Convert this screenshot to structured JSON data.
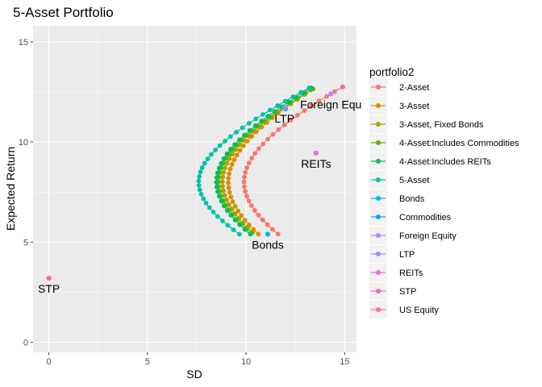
{
  "chart_data": {
    "type": "scatter",
    "title": "5-Asset Portfolio",
    "xlabel": "SD",
    "ylabel": "Expected Return",
    "xlim": [
      -0.8,
      15.6
    ],
    "ylim": [
      -0.5,
      15.8
    ],
    "x_ticks": [
      "0",
      "5",
      "10",
      "15"
    ],
    "y_ticks": [
      "0",
      "5",
      "10",
      "15"
    ],
    "grid": true,
    "legend_position": "right",
    "legend_title": "portfolio2",
    "frontiers": [
      {
        "name": "2-Asset",
        "color": "#F8766D",
        "tip": [
          11.1,
          5.4
        ],
        "top": [
          14.9,
          12.75
        ],
        "min_sd": 9.9,
        "n": 32
      },
      {
        "name": "3-Asset",
        "color": "#DB8E00",
        "tip": [
          11.0,
          5.4
        ],
        "top": [
          13.3,
          12.6
        ],
        "min_sd": 9.1,
        "n": 32
      },
      {
        "name": "3-Asset, Fixed Bonds",
        "color": "#AEA200",
        "tip": [
          10.9,
          5.5
        ],
        "top": [
          13.3,
          12.6
        ],
        "min_sd": 8.8,
        "n": 32
      },
      {
        "name": "4-Asset:Includes  Commodities",
        "color": "#64B200",
        "tip": [
          10.9,
          5.45
        ],
        "top": [
          13.4,
          12.65
        ],
        "min_sd": 8.6,
        "n": 32
      },
      {
        "name": "4-Asset:Includes  REITs",
        "color": "#00BD5C",
        "tip": [
          11.0,
          5.4
        ],
        "top": [
          13.3,
          12.7
        ],
        "min_sd": 8.5,
        "n": 32
      },
      {
        "name": "5-Asset",
        "color": "#00C1A7",
        "tip": [
          11.0,
          5.4
        ],
        "top": [
          13.2,
          12.7
        ],
        "min_sd": 7.6,
        "n": 34
      }
    ],
    "assets": [
      {
        "name": "Bonds",
        "color": "#00BADE",
        "sd": 11.1,
        "ret": 5.4,
        "label": "Bonds"
      },
      {
        "name": "Commodities",
        "color": "#00A6FF",
        "sd": 12.0,
        "ret": 11.65,
        "label": ""
      },
      {
        "name": "Foreign Equity",
        "color": "#B385FF",
        "sd": 14.3,
        "ret": 12.4,
        "label": "Foreign Equ"
      },
      {
        "name": "LTP",
        "color": "#9590FF",
        "sd": 11.95,
        "ret": 11.7,
        "label": "LTP"
      },
      {
        "name": "REITs",
        "color": "#EF67EB",
        "sd": 13.55,
        "ret": 9.45,
        "label": "REITs"
      },
      {
        "name": "STP",
        "color": "#FF63B6",
        "sd": 0.0,
        "ret": 3.2,
        "label": "STP"
      },
      {
        "name": "US Equity",
        "color": "#FF6C91",
        "sd": 14.9,
        "ret": 12.75,
        "label": ""
      }
    ],
    "legend": [
      {
        "label": "2-Asset",
        "color": "#F8766D"
      },
      {
        "label": "3-Asset",
        "color": "#DB8E00"
      },
      {
        "label": "3-Asset, Fixed Bonds",
        "color": "#AEA200"
      },
      {
        "label": "4-Asset:Includes  Commodities",
        "color": "#64B200"
      },
      {
        "label": "4-Asset:Includes  REITs",
        "color": "#00BD5C"
      },
      {
        "label": "5-Asset",
        "color": "#00C1A7"
      },
      {
        "label": "Bonds",
        "color": "#00BADE"
      },
      {
        "label": "Commodities",
        "color": "#00A6FF"
      },
      {
        "label": "Foreign Equity",
        "color": "#B385FF"
      },
      {
        "label": "LTP",
        "color": "#9590FF"
      },
      {
        "label": "REITs",
        "color": "#EF67EB"
      },
      {
        "label": "STP",
        "color": "#FF63B6"
      },
      {
        "label": "US Equity",
        "color": "#FF6C91"
      }
    ]
  }
}
